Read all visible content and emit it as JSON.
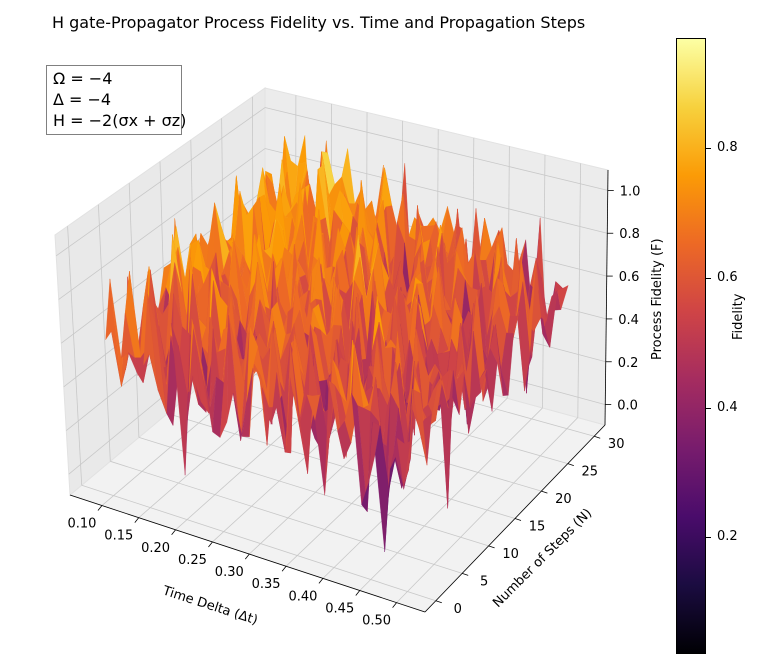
{
  "title": "H gate-Propagator Process Fidelity vs. Time and Propagation Steps",
  "info_box": {
    "lines": [
      "Ω = −4",
      "Δ = −4",
      "H = −2(σx + σz)"
    ]
  },
  "colorbar": {
    "label": "Fidelity",
    "ticks": [
      "0.2",
      "0.4",
      "0.6",
      "0.8"
    ],
    "tick_values": [
      0.2,
      0.4,
      0.6,
      0.8
    ],
    "range": [
      0.02,
      0.97
    ],
    "colormap": "inferno",
    "colormap_stops": [
      "#000004",
      "#1b0c41",
      "#4a0c6b",
      "#781c6d",
      "#a52c60",
      "#cf4446",
      "#ed6925",
      "#fb9b06",
      "#f7d13d",
      "#fcffa4"
    ]
  },
  "chart_data": {
    "type": "surface3d",
    "title": "H gate-Propagator Process Fidelity vs. Time and Propagation Steps",
    "x_axis": {
      "label": "Time Delta (Δt)",
      "ticks": [
        "0.10",
        "0.15",
        "0.20",
        "0.25",
        "0.30",
        "0.35",
        "0.40",
        "0.45",
        "0.50"
      ],
      "tick_values": [
        0.1,
        0.15,
        0.2,
        0.25,
        0.3,
        0.35,
        0.4,
        0.45,
        0.5
      ],
      "range": [
        0.1,
        0.5
      ]
    },
    "y_axis": {
      "label": "Number of Steps (N)",
      "ticks": [
        "0",
        "5",
        "10",
        "15",
        "20",
        "25",
        "30"
      ],
      "tick_values": [
        0,
        5,
        10,
        15,
        20,
        25,
        30
      ],
      "range": [
        1,
        30
      ]
    },
    "z_axis": {
      "label": "Process Fidelity (F)",
      "ticks": [
        "0.0",
        "0.2",
        "0.4",
        "0.6",
        "0.8",
        "1.0"
      ],
      "tick_values": [
        0.0,
        0.2,
        0.4,
        0.6,
        0.8,
        1.0
      ],
      "range": [
        0,
        1
      ]
    },
    "grid": true,
    "surface_pattern": "highly oscillatory fidelity surface spanning roughly 0.05 to 0.97, with many sharp peaks; the highest fidelities (yellow) cluster at small Δt and large N",
    "surface_values_range": [
      0.05,
      0.97
    ]
  }
}
